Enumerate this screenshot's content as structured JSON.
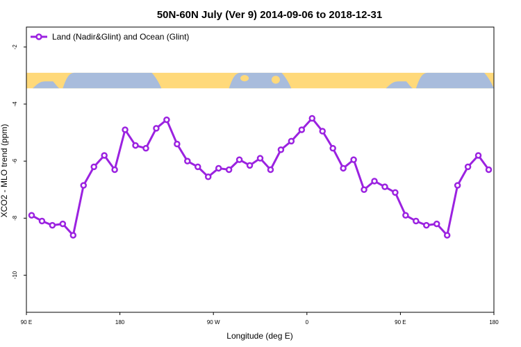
{
  "chart_data": {
    "type": "line",
    "title": "50N-60N July (Ver 9)   2014-09-06 to 2018-12-31",
    "xlabel": "Longitude (deg E)",
    "ylabel": "XCO2 - MLO trend (ppm)",
    "xlim": [
      90,
      540
    ],
    "ylim": [
      -11.3,
      -1.3
    ],
    "x_ticks": [
      {
        "value": 90,
        "label": "90 E"
      },
      {
        "value": 180,
        "label": "180"
      },
      {
        "value": 270,
        "label": "90 W"
      },
      {
        "value": 360,
        "label": "0"
      },
      {
        "value": 450,
        "label": "90 E"
      },
      {
        "value": 540,
        "label": "180"
      }
    ],
    "y_ticks": [
      {
        "value": -2,
        "label": "-2"
      },
      {
        "value": -4,
        "label": "-4"
      },
      {
        "value": -6,
        "label": "-6"
      },
      {
        "value": -8,
        "label": "-8"
      },
      {
        "value": -10,
        "label": "-10"
      }
    ],
    "legend": {
      "position": "top-left"
    },
    "map_strip": {
      "y_top": -2.9,
      "y_bottom": -3.45,
      "land_color": "#ffd97a",
      "ocean_color": "#a8bcdc"
    },
    "series": [
      {
        "name": "Land (Nadir&Glint) and Ocean (Glint)",
        "color": "#9b22e0",
        "x": [
          95,
          105,
          115,
          125,
          135,
          145,
          155,
          165,
          175,
          185,
          195,
          205,
          215,
          225,
          235,
          245,
          255,
          265,
          275,
          285,
          295,
          305,
          315,
          325,
          335,
          345,
          355,
          365,
          375,
          385,
          395,
          405,
          415,
          425,
          435,
          445,
          455,
          465,
          475,
          485,
          495,
          505,
          515,
          525,
          535
        ],
        "values": [
          -7.9,
          -8.1,
          -8.25,
          -8.2,
          -8.6,
          -6.85,
          -6.2,
          -5.8,
          -6.3,
          -4.9,
          -5.45,
          -5.55,
          -4.85,
          -4.55,
          -5.4,
          -6.0,
          -6.2,
          -6.55,
          -6.25,
          -6.3,
          -5.95,
          -6.15,
          -5.9,
          -6.3,
          -5.6,
          -5.3,
          -4.9,
          -4.5,
          -4.95,
          -5.55,
          -6.25,
          -5.95,
          -7.0,
          -6.7,
          -6.9,
          -7.1,
          -7.9,
          -8.1,
          -8.25,
          -8.2,
          -8.6,
          -6.85,
          -6.2,
          -5.8,
          -6.3
        ]
      }
    ]
  }
}
